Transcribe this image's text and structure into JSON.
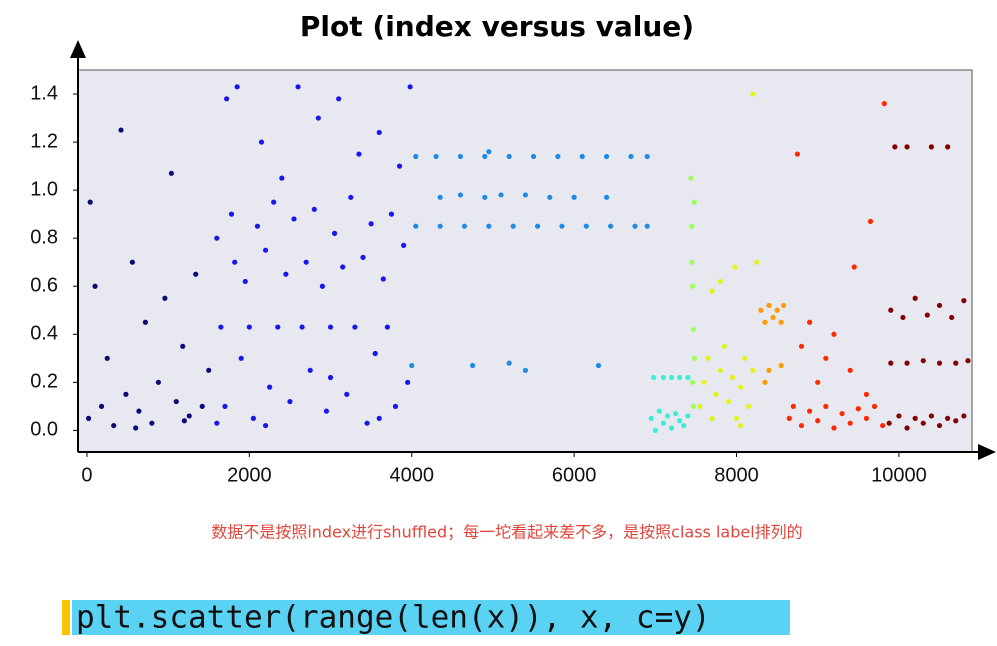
{
  "chart_data": {
    "type": "scatter",
    "title": "Plot (index versus value)",
    "annotation": "数据不是按照index进行shuffled；每一坨看起来差不多，是按照class label排列的",
    "xlim": [
      -110,
      10900
    ],
    "ylim": [
      -0.09,
      1.5
    ],
    "xticks": [
      0,
      2000,
      4000,
      6000,
      8000,
      10000
    ],
    "yticks": [
      {
        "value": 0,
        "label": "0.0"
      },
      0.2,
      0.4,
      0.6,
      0.8,
      {
        "value": 1,
        "label": "1.0"
      },
      1.2,
      1.4
    ],
    "series": [
      {
        "color": "#0b0b78",
        "x": [
          20,
          100,
          180,
          250,
          330,
          420,
          480,
          560,
          640,
          720,
          800,
          880,
          960,
          1040,
          1100,
          1180,
          1260,
          1340,
          1420,
          1500,
          40,
          600,
          1200
        ],
        "values": [
          0.05,
          0.6,
          0.1,
          0.3,
          0.02,
          1.25,
          0.15,
          0.7,
          0.08,
          0.45,
          0.03,
          0.2,
          0.55,
          1.07,
          0.12,
          0.35,
          0.06,
          0.65,
          0.1,
          0.25,
          0.95,
          0.01,
          0.04
        ]
      },
      {
        "color": "#1818ee",
        "x": [
          1600,
          1650,
          1700,
          1720,
          1780,
          1820,
          1850,
          1900,
          1950,
          2000,
          2050,
          2100,
          2150,
          2200,
          2250,
          2300,
          2350,
          2400,
          2450,
          2500,
          2550,
          2600,
          2650,
          2700,
          2750,
          2800,
          2850,
          2900,
          2950,
          3000,
          3050,
          3100,
          3150,
          3200,
          3250,
          3300,
          3350,
          3400,
          3450,
          3500,
          3550,
          3600,
          3650,
          3700,
          3750,
          3800,
          3850,
          3900,
          3950,
          3980,
          1600,
          2200,
          3000,
          3600
        ],
        "values": [
          0.8,
          0.43,
          0.1,
          1.38,
          0.9,
          0.7,
          1.43,
          0.3,
          0.62,
          0.43,
          0.05,
          0.85,
          1.2,
          0.75,
          0.18,
          0.95,
          0.43,
          1.05,
          0.65,
          0.12,
          0.88,
          1.43,
          0.43,
          0.7,
          0.25,
          0.92,
          1.3,
          0.6,
          0.08,
          0.43,
          0.82,
          1.38,
          0.68,
          0.15,
          0.97,
          0.43,
          1.15,
          0.72,
          0.03,
          0.86,
          0.32,
          1.24,
          0.63,
          0.43,
          0.9,
          0.1,
          1.1,
          0.77,
          0.2,
          1.43,
          0.03,
          0.02,
          0.22,
          0.05
        ]
      },
      {
        "color": "#1e8ce6",
        "x": [
          4050,
          4300,
          4600,
          4900,
          5200,
          5500,
          5800,
          6100,
          6400,
          6700,
          6900,
          4050,
          4350,
          4650,
          4950,
          5250,
          5550,
          5850,
          6150,
          6450,
          6750,
          6900,
          4350,
          4600,
          4900,
          5100,
          5400,
          5700,
          6000,
          6400,
          4000,
          4750,
          5200,
          5400,
          6300,
          4950
        ],
        "values": [
          1.14,
          1.14,
          1.14,
          1.14,
          1.14,
          1.14,
          1.14,
          1.14,
          1.14,
          1.14,
          1.14,
          0.85,
          0.85,
          0.85,
          0.85,
          0.85,
          0.85,
          0.85,
          0.85,
          0.85,
          0.85,
          0.85,
          0.97,
          0.98,
          0.97,
          0.98,
          0.98,
          0.97,
          0.97,
          0.97,
          0.27,
          0.27,
          0.28,
          0.25,
          0.27,
          1.16
        ]
      },
      {
        "color": "#3ceed8",
        "x": [
          6950,
          7000,
          7050,
          7100,
          7150,
          7200,
          7250,
          7300,
          7350,
          7400,
          6980,
          7100,
          7200,
          7300,
          7400
        ],
        "values": [
          0.05,
          0,
          0.08,
          0.03,
          0.06,
          0.01,
          0.07,
          0.04,
          0.02,
          0.06,
          0.22,
          0.22,
          0.22,
          0.22,
          0.22
        ]
      },
      {
        "color": "#9cff5a",
        "x": [
          7440,
          7450,
          7460,
          7470,
          7480,
          7460,
          7470,
          7450,
          7480
        ],
        "values": [
          1.05,
          0.85,
          0.6,
          0.42,
          0.3,
          0.2,
          0.1,
          0.7,
          0.95
        ]
      },
      {
        "color": "#e4f21e",
        "x": [
          7550,
          7600,
          7650,
          7700,
          7750,
          7800,
          7850,
          7900,
          7950,
          8000,
          8050,
          8100,
          8150,
          8200,
          7800,
          7980,
          8200,
          8250,
          7700,
          8050
        ],
        "values": [
          0.1,
          0.2,
          0.3,
          0.05,
          0.15,
          0.25,
          0.35,
          0.12,
          0.22,
          0.05,
          0.18,
          0.3,
          0.1,
          0.25,
          0.62,
          0.68,
          1.4,
          0.7,
          0.58,
          0.02
        ]
      },
      {
        "color": "#ff9a00",
        "x": [
          8300,
          8350,
          8400,
          8450,
          8500,
          8550,
          8580,
          8400,
          8550,
          8350
        ],
        "values": [
          0.5,
          0.45,
          0.52,
          0.47,
          0.5,
          0.45,
          0.52,
          0.25,
          0.27,
          0.2
        ]
      },
      {
        "color": "#ff2a00",
        "x": [
          8650,
          8700,
          8800,
          8900,
          9000,
          9100,
          9200,
          9300,
          9400,
          9500,
          9600,
          9700,
          9800,
          8750,
          9450,
          9650,
          9820,
          8800,
          9000,
          9200,
          9400,
          9600,
          9100,
          8900
        ],
        "values": [
          0.05,
          0.1,
          0.02,
          0.08,
          0.04,
          0.1,
          0.01,
          0.07,
          0.03,
          0.09,
          0.05,
          0.1,
          0.02,
          1.15,
          0.68,
          0.87,
          1.36,
          0.35,
          0.2,
          0.4,
          0.25,
          0.15,
          0.3,
          0.45
        ]
      },
      {
        "color": "#840000",
        "x": [
          9880,
          10000,
          10100,
          10200,
          10300,
          10400,
          10500,
          10600,
          10700,
          10800,
          9900,
          10100,
          10300,
          10500,
          10700,
          10850,
          9900,
          10050,
          10200,
          10350,
          10500,
          10650,
          10800,
          9950,
          10100,
          10400,
          10600
        ],
        "values": [
          0.03,
          0.06,
          0.01,
          0.05,
          0.03,
          0.06,
          0.02,
          0.05,
          0.04,
          0.06,
          0.28,
          0.28,
          0.29,
          0.28,
          0.28,
          0.29,
          0.5,
          0.47,
          0.55,
          0.48,
          0.52,
          0.47,
          0.54,
          1.18,
          1.18,
          1.18,
          1.18
        ]
      }
    ]
  },
  "code": "plt.scatter(range(len(x)), x, c=y)"
}
